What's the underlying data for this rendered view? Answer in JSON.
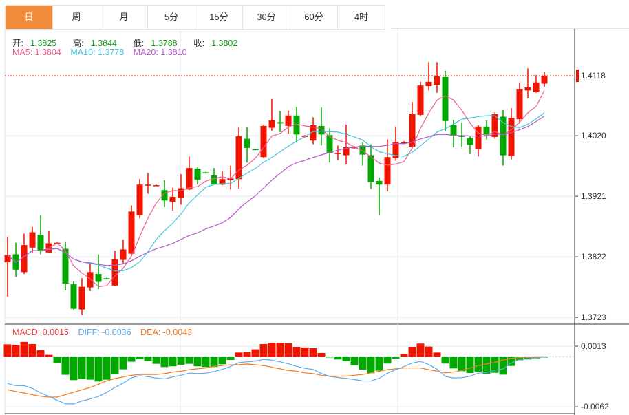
{
  "tabs": [
    {
      "label": "日",
      "active": true
    },
    {
      "label": "周",
      "active": false
    },
    {
      "label": "月",
      "active": false
    },
    {
      "label": "5分",
      "active": false
    },
    {
      "label": "15分",
      "active": false
    },
    {
      "label": "30分",
      "active": false
    },
    {
      "label": "60分",
      "active": false
    },
    {
      "label": "4时",
      "active": false
    }
  ],
  "ohlc_legend": {
    "open_label": "开:",
    "open": "1.3825",
    "high_label": "高:",
    "high": "1.3844",
    "low_label": "低:",
    "low": "1.3788",
    "close_label": "收:",
    "close": "1.3802"
  },
  "ma_legend": {
    "ma5": "MA5: 1.3804",
    "ma10": "MA10: 1.3778",
    "ma20": "MA20: 1.3810"
  },
  "macd_legend": {
    "macd": "MACD: 0.0015",
    "diff": "DIFF: -0.0036",
    "dea": "DEA: -0.0043"
  },
  "colors": {
    "up": "#f01400",
    "down": "#00a800",
    "ma5": "#ef5b8c",
    "ma10": "#3fc6dc",
    "ma20": "#b657c9",
    "diff": "#5aaaf0",
    "dea": "#f27b22",
    "active_tab": "#f08c3c"
  },
  "chart_data": [
    {
      "type": "candlestick",
      "title": "",
      "current_price_label": "1.4118",
      "y_ticks": [
        "1.4020",
        "1.3921",
        "1.3822",
        "1.3723"
      ],
      "ylim": [
        1.3708,
        1.415
      ],
      "ma_periods": [
        5,
        10,
        20
      ],
      "candles": [
        [
          1.3813,
          1.3855,
          1.3757,
          1.3825
        ],
        [
          1.3826,
          1.3845,
          1.3789,
          1.3801
        ],
        [
          1.3797,
          1.386,
          1.3794,
          1.3841
        ],
        [
          1.3837,
          1.3871,
          1.3829,
          1.3862
        ],
        [
          1.3858,
          1.389,
          1.3826,
          1.3831
        ],
        [
          1.3829,
          1.3864,
          1.3828,
          1.3844
        ],
        [
          1.3844,
          1.3846,
          1.3843,
          1.3845
        ],
        [
          1.3835,
          1.3846,
          1.3767,
          1.3778
        ],
        [
          1.3777,
          1.3782,
          1.3735,
          1.3737
        ],
        [
          1.3736,
          1.3787,
          1.3727,
          1.3773
        ],
        [
          1.3772,
          1.381,
          1.3766,
          1.3797
        ],
        [
          1.3794,
          1.3826,
          1.3769,
          1.3781
        ],
        [
          1.3787,
          1.3788,
          1.3785,
          1.3786
        ],
        [
          1.3775,
          1.3832,
          1.3774,
          1.3818
        ],
        [
          1.3817,
          1.385,
          1.3811,
          1.3834
        ],
        [
          1.3827,
          1.3906,
          1.3826,
          1.3896
        ],
        [
          1.389,
          1.3949,
          1.3885,
          1.394
        ],
        [
          1.3939,
          1.3959,
          1.3925,
          1.394
        ],
        [
          1.3939,
          1.394,
          1.3938,
          1.3939
        ],
        [
          1.3931,
          1.3947,
          1.3903,
          1.3914
        ],
        [
          1.3912,
          1.3935,
          1.3897,
          1.392
        ],
        [
          1.3918,
          1.3957,
          1.3907,
          1.3934
        ],
        [
          1.3932,
          1.3986,
          1.3931,
          1.3967
        ],
        [
          1.3966,
          1.3969,
          1.394,
          1.3948
        ],
        [
          1.396,
          1.3961,
          1.3958,
          1.3959
        ],
        [
          1.3955,
          1.3967,
          1.394,
          1.3941
        ],
        [
          1.394,
          1.3962,
          1.3939,
          1.3949
        ],
        [
          1.3948,
          1.3971,
          1.3932,
          1.395
        ],
        [
          1.3949,
          1.4034,
          1.3933,
          1.4019
        ],
        [
          1.4015,
          1.4034,
          1.3976,
          1.4
        ],
        [
          1.3998,
          1.3999,
          1.3996,
          1.3997
        ],
        [
          1.3985,
          1.4038,
          1.3983,
          1.4036
        ],
        [
          1.4033,
          1.408,
          1.4028,
          1.4045
        ],
        [
          1.4042,
          1.406,
          1.4026,
          1.404
        ],
        [
          1.4036,
          1.4061,
          1.4023,
          1.4053
        ],
        [
          1.4053,
          1.4067,
          1.4009,
          1.4022
        ],
        [
          1.4018,
          1.4021,
          1.4017,
          1.402
        ],
        [
          1.4012,
          1.405,
          1.4006,
          1.4037
        ],
        [
          1.4036,
          1.4066,
          1.4004,
          1.4022
        ],
        [
          1.4021,
          1.4032,
          1.3976,
          1.3992
        ],
        [
          1.399,
          1.4004,
          1.398,
          1.3992
        ],
        [
          1.3988,
          1.4038,
          1.3973,
          1.4001
        ],
        [
          1.4,
          1.4003,
          1.3999,
          1.4001
        ],
        [
          1.4004,
          1.4009,
          1.3971,
          1.3989
        ],
        [
          1.3988,
          1.4006,
          1.3933,
          1.3944
        ],
        [
          1.3946,
          1.3952,
          1.389,
          1.394
        ],
        [
          1.394,
          1.4014,
          1.3929,
          1.3985
        ],
        [
          1.3983,
          1.4035,
          1.3979,
          1.401
        ],
        [
          1.4008,
          1.4011,
          1.4007,
          1.4009
        ],
        [
          1.4002,
          1.4075,
          1.4002,
          1.4055
        ],
        [
          1.4054,
          1.4108,
          1.4052,
          1.4102
        ],
        [
          1.4101,
          1.414,
          1.4094,
          1.4108
        ],
        [
          1.4103,
          1.414,
          1.409,
          1.4117
        ],
        [
          1.4116,
          1.4126,
          1.4028,
          1.4044
        ],
        [
          1.4037,
          1.4046,
          1.4001,
          1.402
        ],
        [
          1.402,
          1.4041,
          1.4002,
          1.4018
        ],
        [
          1.4016,
          1.402,
          1.399,
          1.4005
        ],
        [
          1.3998,
          1.4037,
          1.3986,
          1.4035
        ],
        [
          1.4035,
          1.4045,
          1.4014,
          1.4022
        ],
        [
          1.4018,
          1.4058,
          1.4015,
          1.4055
        ],
        [
          1.4051,
          1.4062,
          1.3971,
          1.3988
        ],
        [
          1.3987,
          1.4065,
          1.3981,
          1.4049
        ],
        [
          1.4047,
          1.4107,
          1.404,
          1.4096
        ],
        [
          1.4094,
          1.413,
          1.4081,
          1.4099
        ],
        [
          1.4091,
          1.4119,
          1.409,
          1.4107
        ],
        [
          1.4105,
          1.4124,
          1.41,
          1.4118
        ]
      ]
    },
    {
      "type": "bar+line",
      "title": "MACD",
      "y_ticks": [
        "0.0013",
        "-0.0062"
      ],
      "ylim": [
        -0.0068,
        0.0026
      ],
      "macd": [
        0.00153,
        0.00145,
        0.00182,
        0.00156,
        0.0008,
        0.00023,
        -0.0008,
        -0.00224,
        -0.0029,
        -0.00275,
        -0.00284,
        -0.00307,
        -0.00284,
        -0.00219,
        -0.00156,
        -0.00062,
        -0.00031,
        -0.00054,
        -0.00088,
        -0.00128,
        -0.00119,
        -0.00099,
        -0.00088,
        -0.00119,
        -0.00128,
        -0.00128,
        -0.00094,
        -0.0004,
        0.00051,
        0.00054,
        0.00091,
        0.00156,
        0.00173,
        0.00173,
        0.00165,
        0.00122,
        0.00114,
        0.00105,
        0.00045,
        -9e-05,
        -0.00034,
        -0.00057,
        -0.00105,
        -0.00159,
        -0.00204,
        -0.00173,
        -0.00085,
        -0.00023,
        0.00034,
        0.00122,
        0.00162,
        0.00125,
        0.00051,
        -0.00085,
        -0.00145,
        -0.00179,
        -0.00202,
        -0.00187,
        -0.0021,
        -0.00199,
        -0.00222,
        -0.00114,
        -0.00043,
        -0.00034,
        -0.0002,
        -0.0001
      ],
      "dea": [
        -0.0041,
        -0.0043,
        -0.0045,
        -0.0047,
        -0.0049,
        -0.005,
        -0.005,
        -0.0047,
        -0.0044,
        -0.0041,
        -0.0038,
        -0.0034,
        -0.003,
        -0.0027,
        -0.0025,
        -0.0023,
        -0.0022,
        -0.0022,
        -0.0022,
        -0.0021,
        -0.0019,
        -0.0018,
        -0.0016,
        -0.0015,
        -0.0014,
        -0.0012,
        -0.0011,
        -0.001,
        -0.001,
        -0.0009,
        -0.001,
        -0.0011,
        -0.0013,
        -0.0015,
        -0.0017,
        -0.0018,
        -0.002,
        -0.0021,
        -0.0023,
        -0.0024,
        -0.0024,
        -0.0024,
        -0.0023,
        -0.0022,
        -0.002,
        -0.0018,
        -0.0016,
        -0.0015,
        -0.0014,
        -0.0014,
        -0.0014,
        -0.0016,
        -0.0018,
        -0.002,
        -0.0019,
        -0.0017,
        -0.0014,
        -0.0011,
        -0.0009,
        -0.0007,
        -0.0004,
        -0.0002,
        -0.0001,
        -0.0001,
        0,
        0
      ]
    }
  ]
}
